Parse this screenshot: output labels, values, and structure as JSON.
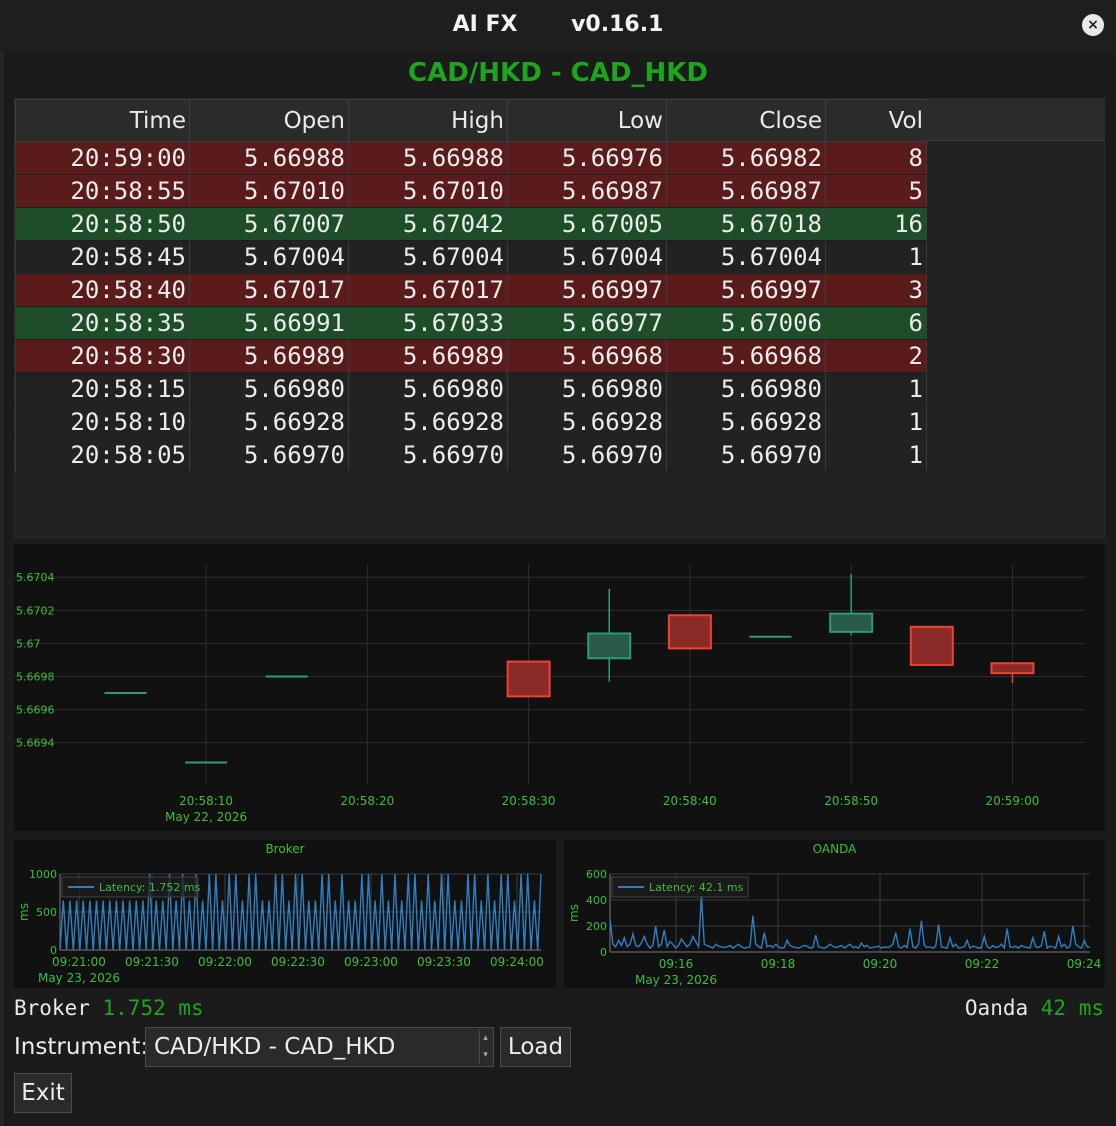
{
  "window": {
    "title": "AI FX       v0.16.1",
    "close_glyph": "×"
  },
  "instrument_heading": "CAD/HKD - CAD_HKD",
  "quotes_table": {
    "headers": [
      "Time",
      "Open",
      "High",
      "Low",
      "Close",
      "Vol"
    ],
    "rows": [
      {
        "dir": "down",
        "cells": [
          "20:59:00",
          "5.66988",
          "5.66988",
          "5.66976",
          "5.66982",
          "8"
        ]
      },
      {
        "dir": "down",
        "cells": [
          "20:58:55",
          "5.67010",
          "5.67010",
          "5.66987",
          "5.66987",
          "5"
        ]
      },
      {
        "dir": "up",
        "cells": [
          "20:58:50",
          "5.67007",
          "5.67042",
          "5.67005",
          "5.67018",
          "16"
        ]
      },
      {
        "dir": "flat",
        "cells": [
          "20:58:45",
          "5.67004",
          "5.67004",
          "5.67004",
          "5.67004",
          "1"
        ]
      },
      {
        "dir": "down",
        "cells": [
          "20:58:40",
          "5.67017",
          "5.67017",
          "5.66997",
          "5.66997",
          "3"
        ]
      },
      {
        "dir": "up",
        "cells": [
          "20:58:35",
          "5.66991",
          "5.67033",
          "5.66977",
          "5.67006",
          "6"
        ]
      },
      {
        "dir": "down",
        "cells": [
          "20:58:30",
          "5.66989",
          "5.66989",
          "5.66968",
          "5.66968",
          "2"
        ]
      },
      {
        "dir": "flat",
        "cells": [
          "20:58:15",
          "5.66980",
          "5.66980",
          "5.66980",
          "5.66980",
          "1"
        ]
      },
      {
        "dir": "flat",
        "cells": [
          "20:58:10",
          "5.66928",
          "5.66928",
          "5.66928",
          "5.66928",
          "1"
        ]
      },
      {
        "dir": "flat",
        "cells": [
          "20:58:05",
          "5.66970",
          "5.66970",
          "5.66970",
          "5.66970",
          "1"
        ]
      }
    ]
  },
  "chart_data": [
    {
      "type": "candlestick",
      "title": "",
      "x_ticks": [
        "20:58:10",
        "20:58:20",
        "20:58:30",
        "20:58:40",
        "20:58:50",
        "20:59:00"
      ],
      "x_date_label": "May 22, 2026",
      "y_ticks": [
        "5.6704",
        "5.6702",
        "5.67",
        "5.6698",
        "5.6696",
        "5.6694"
      ],
      "ylim": [
        5.66915,
        5.67048
      ],
      "grid": true,
      "colors": {
        "up": "#2f9b73",
        "down": "#ef4134",
        "axis_text": "#3cbf3c",
        "grid": "#2d2d2d",
        "background": "#111111"
      },
      "candles": [
        {
          "t": "20:58:05",
          "open": 5.6697,
          "high": 5.6697,
          "low": 5.6697,
          "close": 5.6697
        },
        {
          "t": "20:58:10",
          "open": 5.66928,
          "high": 5.66928,
          "low": 5.66928,
          "close": 5.66928
        },
        {
          "t": "20:58:15",
          "open": 5.6698,
          "high": 5.6698,
          "low": 5.6698,
          "close": 5.6698
        },
        {
          "t": "20:58:30",
          "open": 5.66989,
          "high": 5.66989,
          "low": 5.66968,
          "close": 5.66968
        },
        {
          "t": "20:58:35",
          "open": 5.66991,
          "high": 5.67033,
          "low": 5.66977,
          "close": 5.67006
        },
        {
          "t": "20:58:40",
          "open": 5.67017,
          "high": 5.67017,
          "low": 5.66997,
          "close": 5.66997
        },
        {
          "t": "20:58:45",
          "open": 5.67004,
          "high": 5.67004,
          "low": 5.67004,
          "close": 5.67004
        },
        {
          "t": "20:58:50",
          "open": 5.67007,
          "high": 5.67042,
          "low": 5.67005,
          "close": 5.67018
        },
        {
          "t": "20:58:55",
          "open": 5.6701,
          "high": 5.6701,
          "low": 5.66987,
          "close": 5.66987
        },
        {
          "t": "20:59:00",
          "open": 5.66988,
          "high": 5.66988,
          "low": 5.66976,
          "close": 5.66982
        }
      ]
    },
    {
      "type": "line",
      "title": "Broker",
      "ylabel": "ms",
      "ylim": [
        0,
        1000
      ],
      "y_ticks": [
        "1000",
        "500",
        "0"
      ],
      "x_ticks": [
        "09:21:00",
        "09:21:30",
        "09:22:00",
        "09:22:30",
        "09:23:00",
        "09:23:30",
        "09:24:00"
      ],
      "x_date_label": "May 23, 2026",
      "grid": true,
      "legend": "top-left",
      "series": [
        {
          "name": "Latency: 1.752 ms",
          "color": "#2f7fc1",
          "values": [
            0,
            650,
            0,
            650,
            0,
            650,
            0,
            650,
            0,
            650,
            0,
            650,
            0,
            650,
            0,
            650,
            0,
            650,
            0,
            650,
            0,
            650,
            0,
            650,
            0,
            650,
            0,
            1000,
            0,
            650,
            0,
            650,
            0,
            1000,
            0,
            650,
            0,
            1000,
            0,
            650,
            0,
            1000,
            0,
            650,
            0,
            1000,
            0,
            1000,
            0,
            650,
            0,
            1000,
            0,
            1000,
            0,
            650,
            0,
            1000,
            0,
            1000,
            0,
            650,
            0,
            650,
            0,
            1000,
            0,
            1000,
            0,
            650,
            0,
            1000,
            0,
            1000,
            0,
            650,
            0,
            650,
            0,
            1000,
            0,
            1000,
            0,
            650,
            0,
            1000,
            0,
            650,
            0,
            650,
            0,
            1000,
            0,
            1000,
            0,
            650,
            0,
            1000,
            0,
            650,
            0,
            1000,
            0,
            650,
            0,
            1000,
            0,
            1000,
            0,
            650,
            0,
            1000,
            0,
            650,
            0,
            1000,
            0,
            1000,
            0,
            650,
            0,
            650,
            0,
            1000,
            0,
            1000,
            0,
            650,
            0,
            1000,
            0,
            650,
            0,
            1000,
            0,
            1000,
            0,
            650,
            0,
            1000,
            0,
            1000,
            0,
            650,
            0,
            1000
          ]
        }
      ]
    },
    {
      "type": "line",
      "title": "OANDA",
      "ylabel": "ms",
      "ylim": [
        0,
        600
      ],
      "y_ticks": [
        "600",
        "400",
        "200",
        "0"
      ],
      "x_ticks": [
        "09:16",
        "09:18",
        "09:20",
        "09:22",
        "09:24"
      ],
      "x_date_label": "May 23, 2026",
      "grid": true,
      "legend": "top-left",
      "series": [
        {
          "name": "Latency: 42.1 ms",
          "color": "#2f7fc1",
          "values": [
            250,
            60,
            40,
            90,
            50,
            110,
            40,
            60,
            140,
            50,
            40,
            70,
            120,
            60,
            30,
            50,
            200,
            40,
            60,
            170,
            40,
            80,
            60,
            30,
            50,
            100,
            70,
            40,
            60,
            120,
            80,
            40,
            430,
            60,
            50,
            40,
            30,
            60,
            45,
            40,
            35,
            40,
            50,
            30,
            45,
            60,
            40,
            30,
            35,
            40,
            280,
            60,
            40,
            30,
            150,
            40,
            50,
            35,
            60,
            40,
            30,
            35,
            90,
            50,
            40,
            35,
            30,
            40,
            50,
            45,
            30,
            35,
            130,
            40,
            35,
            30,
            40,
            60,
            45,
            35,
            40,
            50,
            30,
            45,
            60,
            35,
            40,
            30,
            70,
            40,
            50,
            30,
            35,
            40,
            45,
            30,
            40,
            35,
            40,
            60,
            150,
            40,
            30,
            50,
            35,
            180,
            40,
            30,
            60,
            240,
            50,
            35,
            40,
            30,
            45,
            210,
            40,
            35,
            30,
            110,
            40,
            60,
            30,
            35,
            40,
            90,
            30,
            45,
            40,
            30,
            35,
            120,
            40,
            30,
            50,
            35,
            40,
            60,
            30,
            180,
            40,
            35,
            45,
            30,
            50,
            40,
            35,
            30,
            110,
            40,
            35,
            50,
            160,
            30,
            45,
            40,
            30,
            120,
            40,
            60,
            30,
            45,
            200,
            60,
            40,
            30,
            90,
            40,
            35
          ]
        }
      ]
    }
  ],
  "latency": {
    "broker_label": "Broker",
    "broker_value": "1.752 ms",
    "oanda_label": "Oanda",
    "oanda_value": "42 ms"
  },
  "controls": {
    "instrument_label": "Instrument:",
    "instrument_value": "CAD/HKD - CAD_HKD",
    "load_label": "Load",
    "exit_label": "Exit"
  },
  "icons": {
    "close": "close-icon",
    "dropdown": "chevron-updown-icon"
  }
}
